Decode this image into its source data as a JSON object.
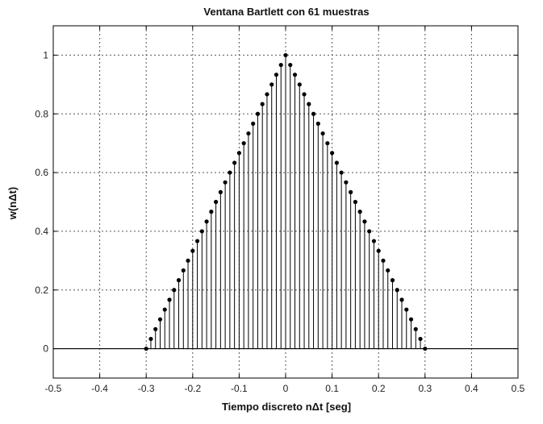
{
  "chart_data": {
    "type": "stem",
    "title": "Ventana Bartlett con 61 muestras",
    "xlabel": "Tiempo discreto nΔt [seg]",
    "ylabel": "w(nΔt)",
    "xlim": [
      -0.5,
      0.5
    ],
    "ylim": [
      -0.1,
      1.1
    ],
    "xticks": [
      -0.5,
      -0.4,
      -0.3,
      -0.2,
      -0.1,
      0,
      0.1,
      0.2,
      0.3,
      0.4,
      0.5
    ],
    "xtick_labels": [
      "-0.5",
      "-0.4",
      "-0.3",
      "-0.2",
      "-0.1",
      "0",
      "0.1",
      "0.2",
      "0.3",
      "0.4",
      "0.5"
    ],
    "yticks": [
      0,
      0.2,
      0.4,
      0.6,
      0.8,
      1
    ],
    "ytick_labels": [
      "0",
      "0.2",
      "0.4",
      "0.6",
      "0.8",
      "1"
    ],
    "grid": true,
    "grid_style": "dotted",
    "series": [
      {
        "x": [
          -0.3,
          -0.29,
          -0.28,
          -0.27,
          -0.26,
          -0.25,
          -0.24,
          -0.23,
          -0.22,
          -0.21,
          -0.2,
          -0.19,
          -0.18,
          -0.17,
          -0.16,
          -0.15,
          -0.14,
          -0.13,
          -0.12,
          -0.11,
          -0.1,
          -0.09,
          -0.08,
          -0.07,
          -0.06,
          -0.05,
          -0.04,
          -0.03,
          -0.02,
          -0.01,
          0.0,
          0.01,
          0.02,
          0.03,
          0.04,
          0.05,
          0.06,
          0.07,
          0.08,
          0.09,
          0.1,
          0.11,
          0.12,
          0.13,
          0.14,
          0.15,
          0.16,
          0.17,
          0.18,
          0.19,
          0.2,
          0.21,
          0.22,
          0.23,
          0.24,
          0.25,
          0.26,
          0.27,
          0.28,
          0.29,
          0.3
        ],
        "y": [
          0.0,
          0.0333,
          0.0667,
          0.1,
          0.1333,
          0.1667,
          0.2,
          0.2333,
          0.2667,
          0.3,
          0.3333,
          0.3667,
          0.4,
          0.4333,
          0.4667,
          0.5,
          0.5333,
          0.5667,
          0.6,
          0.6333,
          0.6667,
          0.7,
          0.7333,
          0.7667,
          0.8,
          0.8333,
          0.8667,
          0.9,
          0.9333,
          0.9667,
          1.0,
          0.9667,
          0.9333,
          0.9,
          0.8667,
          0.8333,
          0.8,
          0.7667,
          0.7333,
          0.7,
          0.6667,
          0.6333,
          0.6,
          0.5667,
          0.5333,
          0.5,
          0.4667,
          0.4333,
          0.4,
          0.3667,
          0.3333,
          0.3,
          0.2667,
          0.2333,
          0.2,
          0.1667,
          0.1333,
          0.1,
          0.0667,
          0.0333,
          0.0
        ]
      }
    ],
    "colors": {
      "stem": "#000000",
      "baseline": "#000000",
      "grid": "#555555",
      "axes": "#000000"
    }
  }
}
